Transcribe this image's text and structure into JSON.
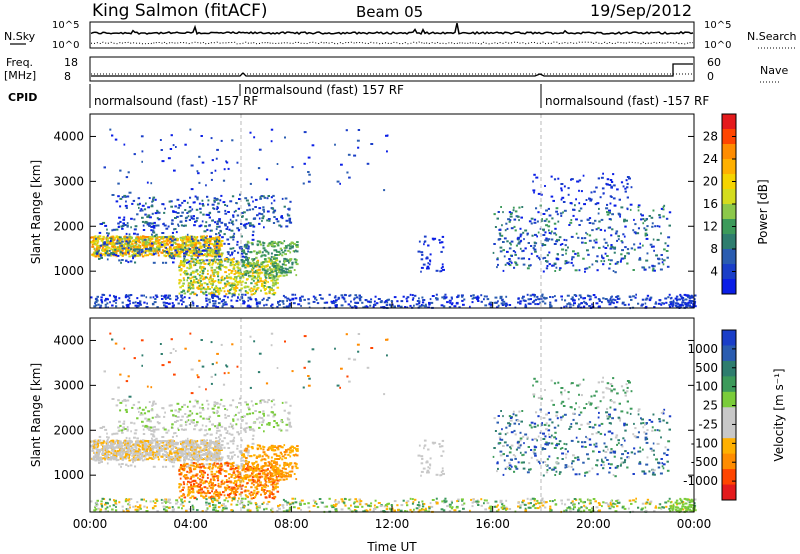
{
  "header": {
    "station": "King Salmon (fitACF)",
    "beam": "Beam 05",
    "date": "19/Sep/2012"
  },
  "meta_panels": {
    "nsky_label": "N.Sky",
    "nsearch_label": "N.Search",
    "nsky_ticks": [
      "10^5",
      "10^0"
    ],
    "nsearch_ticks": [
      "10^5",
      "10^0"
    ],
    "freq_label_1": "Freq.",
    "freq_label_2": "[MHz]",
    "freq_ticks": [
      "18",
      "8"
    ],
    "nave_label": "Nave",
    "nave_ticks": [
      "60",
      "0"
    ],
    "cpid_label": "CPID",
    "cpid_segments": [
      "normalsound (fast) -157 RF",
      "normalsound (fast) 157 RF",
      "normalsound (fast) -157 RF"
    ]
  },
  "power_panel": {
    "ylabel": "Slant Range [km]",
    "colorbar_label": "Power [dB]",
    "colorbar_ticks": [
      "28",
      "24",
      "20",
      "16",
      "12",
      "8",
      "4"
    ],
    "colorbar_colors": [
      "#e41a1c",
      "#ff4500",
      "#ff8c00",
      "#ffb000",
      "#f5d400",
      "#d4dc1e",
      "#8cc84a",
      "#3c9a5a",
      "#2e7d6e",
      "#2a5cb0",
      "#1a3ec8",
      "#0a1ee6"
    ]
  },
  "velocity_panel": {
    "ylabel": "Slant Range [km]",
    "colorbar_label": "Velocity [m s⁻¹]",
    "colorbar_ticks": [
      "1000",
      "500",
      "100",
      "25",
      "-25",
      "-100",
      "-500",
      "-1000"
    ],
    "colorbar_colors": [
      "#1a3ec8",
      "#2a5cb0",
      "#2e7d6e",
      "#3c9a5a",
      "#7acc3a",
      "#c8c8c8",
      "#c8c8c8",
      "#ffb000",
      "#ff8c00",
      "#ff4500",
      "#e41a1c"
    ]
  },
  "xaxis": {
    "label": "Time UT",
    "ticks": [
      "00:00",
      "04:00",
      "08:00",
      "12:00",
      "16:00",
      "20:00",
      "00:00"
    ]
  },
  "chart_data": [
    {
      "type": "heatmap",
      "title": "King Salmon (fitACF)",
      "xlabel": "Time UT",
      "ylabel": "Slant Range [km]",
      "colorbar": "Power [dB]",
      "xlim": [
        0,
        24
      ],
      "ylim": [
        180,
        4500
      ],
      "yticks": [
        1000,
        2000,
        3000,
        4000
      ],
      "xticks": [
        0,
        4,
        8,
        12,
        16,
        20,
        24
      ],
      "clim": [
        0,
        30
      ]
    },
    {
      "type": "heatmap",
      "title": "King Salmon (fitACF)",
      "xlabel": "Time UT",
      "ylabel": "Slant Range [km]",
      "colorbar": "Velocity [m s⁻¹]",
      "xlim": [
        0,
        24
      ],
      "ylim": [
        180,
        4500
      ],
      "yticks": [
        1000,
        2000,
        3000,
        4000
      ],
      "xticks": [
        0,
        4,
        8,
        12,
        16,
        20,
        24
      ],
      "clim": [
        -1000,
        1000
      ]
    }
  ]
}
